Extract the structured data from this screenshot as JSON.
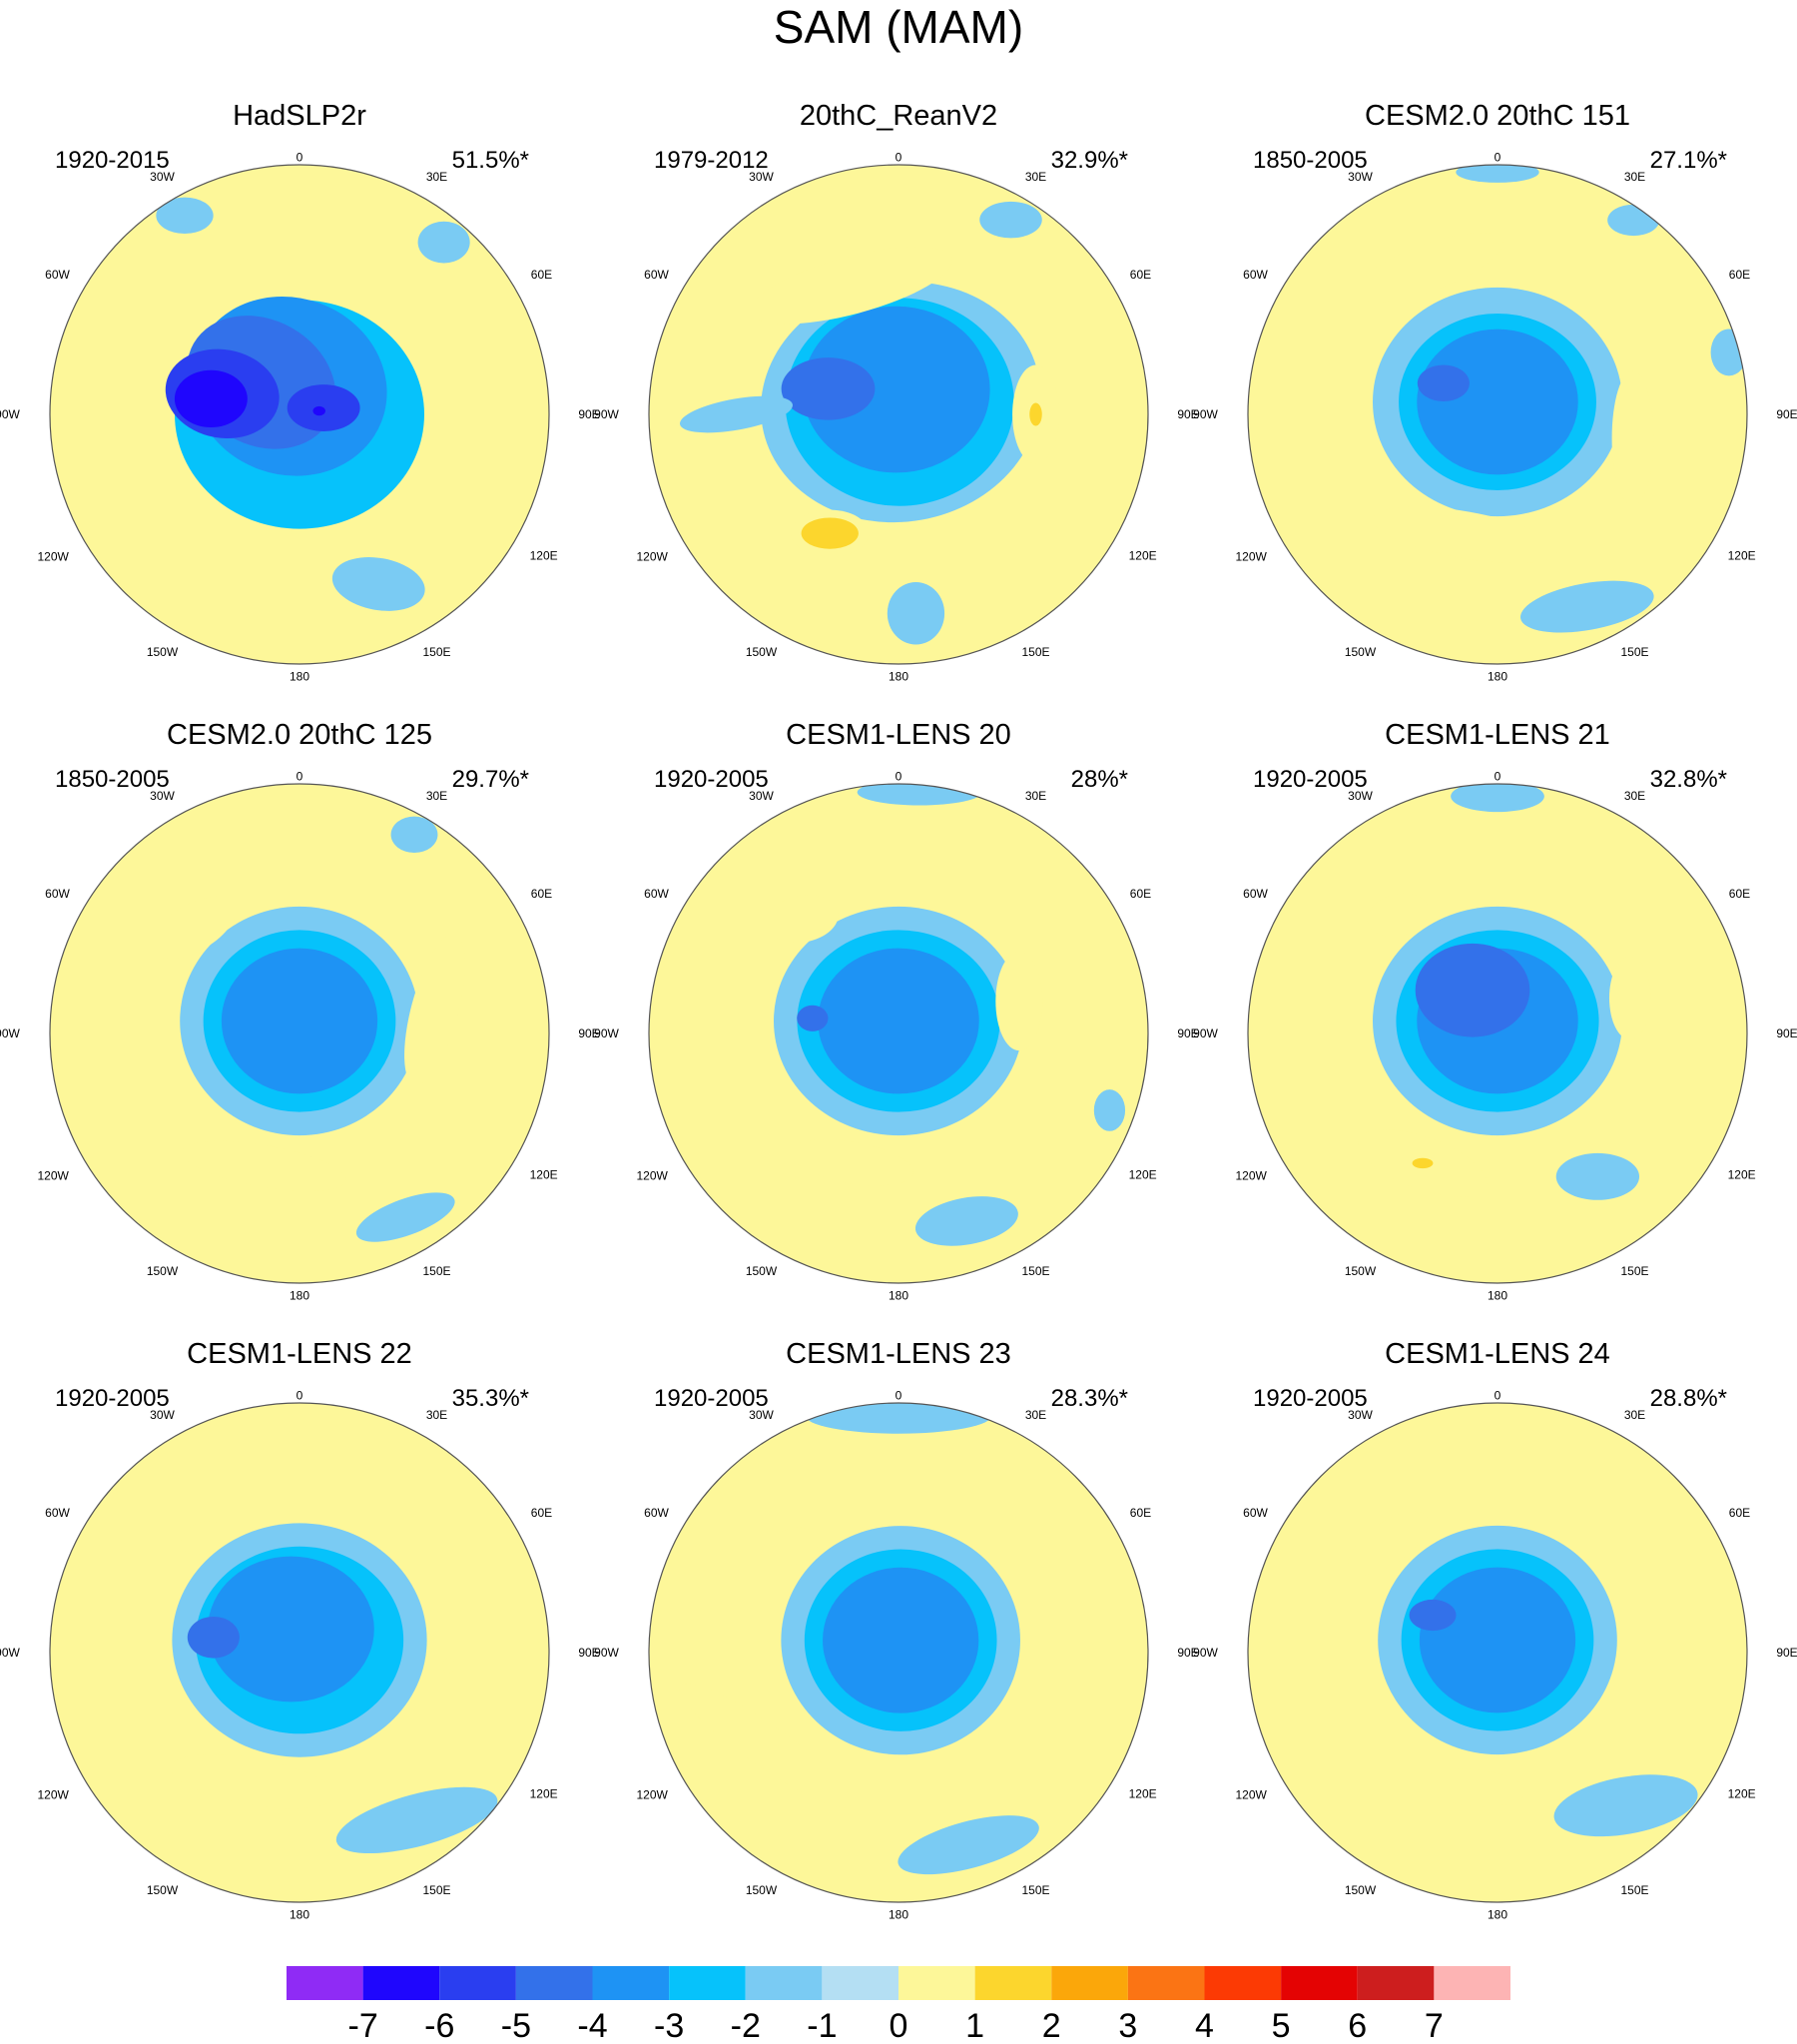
{
  "figure_title": "SAM (MAM)",
  "colors": {
    "coast": "#6e6e6e",
    "frame": "#555555",
    "levels": [
      "#8f2bf5",
      "#1f06fd",
      "#2a3ef0",
      "#3371ea",
      "#1e93f4",
      "#06c2fb",
      "#7acbf3",
      "#b4dff3",
      "#fdf799",
      "#fcd62d",
      "#fba70a",
      "#fb7414",
      "#fc3a04",
      "#e40303",
      "#cd1e1e",
      "#fdb4b4"
    ]
  },
  "polar_labels": {
    "lon_top": "0",
    "lon_bottom": "180",
    "lon_30w": "30W",
    "lon_30e": "30E",
    "lon_60w": "60W",
    "lon_60e": "60E",
    "lon_90w": "90W",
    "lon_90e": "90E",
    "lon_120w": "120W",
    "lon_120e": "120E",
    "lon_150w": "150W",
    "lon_150e": "150E"
  },
  "chart_data": [
    {
      "type": "heatmap",
      "title": "HadSLP2r",
      "period": "1920-2015",
      "variance": "51.5%*",
      "features": [
        {
          "lon": 0,
          "r": 0,
          "a": 2.4,
          "b": 2.2,
          "rot": 0,
          "level": -2
        },
        {
          "lon": -20,
          "r": 0.12,
          "a": 1.9,
          "b": 1.7,
          "rot": 20,
          "level": -3
        },
        {
          "lon": -50,
          "r": 0.2,
          "a": 1.5,
          "b": 1.2,
          "rot": 30,
          "level": -4
        },
        {
          "lon": -75,
          "r": 0.32,
          "a": 1.1,
          "b": 0.85,
          "rot": 10,
          "level": -5
        },
        {
          "lon": -80,
          "r": 0.36,
          "a": 0.7,
          "b": 0.55,
          "rot": 0,
          "level": -6
        },
        {
          "lon": 75,
          "r": 0.1,
          "a": 0.7,
          "b": 0.45,
          "rot": 0,
          "level": -5
        },
        {
          "lon": 80,
          "r": 0.08,
          "a": 0.12,
          "b": 0.09,
          "rot": 0,
          "level": -6
        },
        {
          "lon": -20,
          "r": 0.65,
          "a": 0.14,
          "b": 0.07,
          "rot": 20,
          "level": 1
        },
        {
          "lon": 155,
          "r": 0.75,
          "a": 0.9,
          "b": 0.5,
          "rot": 10,
          "level": -1
        },
        {
          "lon": 40,
          "r": 0.9,
          "a": 0.5,
          "b": 0.4,
          "rot": 0,
          "level": -1
        },
        {
          "lon": -30,
          "r": 0.92,
          "a": 0.55,
          "b": 0.35,
          "rot": 0,
          "level": -1
        }
      ]
    },
    {
      "type": "heatmap",
      "title": "20thC_ReanV2",
      "period": "1979-2012",
      "variance": "32.9%*",
      "features": [
        {
          "lon": 10,
          "r": 0.05,
          "a": 2.7,
          "b": 2.3,
          "rot": -10,
          "level": -1
        },
        {
          "lon": 5,
          "r": 0.05,
          "a": 2.2,
          "b": 2.0,
          "rot": 0,
          "level": -2
        },
        {
          "lon": -5,
          "r": 0.1,
          "a": 1.8,
          "b": 1.6,
          "rot": 0,
          "level": -3
        },
        {
          "lon": -70,
          "r": 0.3,
          "a": 0.9,
          "b": 0.6,
          "rot": 0,
          "level": -4
        },
        {
          "lon": -20,
          "r": 0.55,
          "a": 2.0,
          "b": 0.55,
          "rot": -15,
          "level": 1
        },
        {
          "lon": 90,
          "r": 0.55,
          "a": 0.45,
          "b": 0.95,
          "rot": 0,
          "level": 1
        },
        {
          "lon": 90,
          "r": 0.55,
          "a": 0.12,
          "b": 0.22,
          "rot": 0,
          "level": 2
        },
        {
          "lon": -150,
          "r": 0.55,
          "a": 0.75,
          "b": 0.45,
          "rot": 0,
          "level": 1
        },
        {
          "lon": -150,
          "r": 0.55,
          "a": 0.55,
          "b": 0.3,
          "rot": 0,
          "level": 2
        },
        {
          "lon": 175,
          "r": 0.8,
          "a": 0.55,
          "b": 0.6,
          "rot": 0,
          "level": -1
        },
        {
          "lon": 30,
          "r": 0.9,
          "a": 0.6,
          "b": 0.35,
          "rot": 0,
          "level": -1
        },
        {
          "lon": -90,
          "r": 0.65,
          "a": 1.1,
          "b": 0.3,
          "rot": -10,
          "level": -1
        }
      ]
    },
    {
      "type": "heatmap",
      "title": "CESM2.0 20thC 151",
      "period": "1850-2005",
      "variance": "27.1%*",
      "features": [
        {
          "lon": 0,
          "r": 0.05,
          "a": 2.4,
          "b": 2.2,
          "rot": 0,
          "level": -1
        },
        {
          "lon": 0,
          "r": 0.05,
          "a": 1.9,
          "b": 1.7,
          "rot": 0,
          "level": -2
        },
        {
          "lon": 0,
          "r": 0.05,
          "a": 1.55,
          "b": 1.4,
          "rot": 0,
          "level": -3
        },
        {
          "lon": -60,
          "r": 0.25,
          "a": 0.5,
          "b": 0.35,
          "rot": 0,
          "level": -4
        },
        {
          "lon": -25,
          "r": 0.65,
          "a": 1.5,
          "b": 0.45,
          "rot": -20,
          "level": 1
        },
        {
          "lon": 100,
          "r": 0.55,
          "a": 0.4,
          "b": 1.3,
          "rot": 0,
          "level": 1
        },
        {
          "lon": -165,
          "r": 0.5,
          "a": 1.8,
          "b": 0.45,
          "rot": 10,
          "level": 1
        },
        {
          "lon": 155,
          "r": 0.85,
          "a": 1.3,
          "b": 0.45,
          "rot": -10,
          "level": -1
        },
        {
          "lon": 35,
          "r": 0.95,
          "a": 0.5,
          "b": 0.3,
          "rot": 0,
          "level": -1
        },
        {
          "lon": 0,
          "r": 0.97,
          "a": 0.8,
          "b": 0.2,
          "rot": 0,
          "level": -1
        },
        {
          "lon": 75,
          "r": 0.96,
          "a": 0.35,
          "b": 0.45,
          "rot": 0,
          "level": -1
        }
      ]
    },
    {
      "type": "heatmap",
      "title": "CESM2.0 20thC 125",
      "period": "1850-2005",
      "variance": "29.7%*",
      "features": [
        {
          "lon": 0,
          "r": 0.05,
          "a": 2.3,
          "b": 2.2,
          "rot": 0,
          "level": -1
        },
        {
          "lon": 0,
          "r": 0.05,
          "a": 1.85,
          "b": 1.75,
          "rot": 0,
          "level": -2
        },
        {
          "lon": 0,
          "r": 0.05,
          "a": 1.5,
          "b": 1.4,
          "rot": 0,
          "level": -3
        },
        {
          "lon": -45,
          "r": 0.6,
          "a": 0.9,
          "b": 0.45,
          "rot": -30,
          "level": 1
        },
        {
          "lon": 80,
          "r": 0.55,
          "a": 0.45,
          "b": 1.5,
          "rot": 15,
          "level": 1
        },
        {
          "lon": -165,
          "r": 0.55,
          "a": 1.6,
          "b": 0.4,
          "rot": 10,
          "level": 1
        },
        {
          "lon": 150,
          "r": 0.85,
          "a": 1.0,
          "b": 0.35,
          "rot": -20,
          "level": -1
        },
        {
          "lon": 30,
          "r": 0.92,
          "a": 0.45,
          "b": 0.35,
          "rot": 0,
          "level": -1
        }
      ]
    },
    {
      "type": "heatmap",
      "title": "CESM1-LENS 20",
      "period": "1920-2005",
      "variance": "28%*",
      "features": [
        {
          "lon": 0,
          "r": 0.05,
          "a": 2.4,
          "b": 2.2,
          "rot": 0,
          "level": -1
        },
        {
          "lon": 0,
          "r": 0.05,
          "a": 1.95,
          "b": 1.75,
          "rot": 0,
          "level": -2
        },
        {
          "lon": 0,
          "r": 0.05,
          "a": 1.55,
          "b": 1.4,
          "rot": 0,
          "level": -3
        },
        {
          "lon": -80,
          "r": 0.35,
          "a": 0.3,
          "b": 0.25,
          "rot": 0,
          "level": -4
        },
        {
          "lon": -40,
          "r": 0.6,
          "a": 0.7,
          "b": 0.45,
          "rot": -10,
          "level": 1
        },
        {
          "lon": 75,
          "r": 0.5,
          "a": 0.45,
          "b": 0.95,
          "rot": 0,
          "level": 1
        },
        {
          "lon": -160,
          "r": 0.55,
          "a": 1.2,
          "b": 0.4,
          "rot": 10,
          "level": 1
        },
        {
          "lon": 160,
          "r": 0.8,
          "a": 1.0,
          "b": 0.45,
          "rot": -10,
          "level": -1
        },
        {
          "lon": 5,
          "r": 0.97,
          "a": 1.2,
          "b": 0.25,
          "rot": 0,
          "level": -1
        },
        {
          "lon": 110,
          "r": 0.9,
          "a": 0.3,
          "b": 0.4,
          "rot": 0,
          "level": -1
        }
      ]
    },
    {
      "type": "heatmap",
      "title": "CESM1-LENS 21",
      "period": "1920-2005",
      "variance": "32.8%*",
      "features": [
        {
          "lon": 0,
          "r": 0.05,
          "a": 2.4,
          "b": 2.2,
          "rot": 0,
          "level": -1
        },
        {
          "lon": 0,
          "r": 0.05,
          "a": 1.95,
          "b": 1.75,
          "rot": 0,
          "level": -2
        },
        {
          "lon": 0,
          "r": 0.05,
          "a": 1.55,
          "b": 1.4,
          "rot": 0,
          "level": -3
        },
        {
          "lon": -30,
          "r": 0.2,
          "a": 1.1,
          "b": 0.9,
          "rot": 0,
          "level": -4
        },
        {
          "lon": -40,
          "r": 0.62,
          "a": 0.6,
          "b": 0.4,
          "rot": -15,
          "level": 1
        },
        {
          "lon": 75,
          "r": 0.55,
          "a": 0.4,
          "b": 0.8,
          "rot": 0,
          "level": 1
        },
        {
          "lon": -150,
          "r": 0.6,
          "a": 1.3,
          "b": 0.5,
          "rot": 20,
          "level": 1
        },
        {
          "lon": -150,
          "r": 0.6,
          "a": 0.2,
          "b": 0.1,
          "rot": 0,
          "level": 2
        },
        {
          "lon": 145,
          "r": 0.7,
          "a": 0.8,
          "b": 0.45,
          "rot": 0,
          "level": -1
        },
        {
          "lon": 0,
          "r": 0.95,
          "a": 0.9,
          "b": 0.3,
          "rot": 0,
          "level": -1
        }
      ]
    },
    {
      "type": "heatmap",
      "title": "CESM1-LENS 22",
      "period": "1920-2005",
      "variance": "35.3%*",
      "features": [
        {
          "lon": 0,
          "r": 0.05,
          "a": 2.45,
          "b": 2.25,
          "rot": 0,
          "level": -1
        },
        {
          "lon": 0,
          "r": 0.05,
          "a": 2.0,
          "b": 1.8,
          "rot": 0,
          "level": -2
        },
        {
          "lon": -20,
          "r": 0.1,
          "a": 1.6,
          "b": 1.4,
          "rot": 0,
          "level": -3
        },
        {
          "lon": -80,
          "r": 0.35,
          "a": 0.5,
          "b": 0.4,
          "rot": 0,
          "level": -4
        },
        {
          "lon": -40,
          "r": 0.6,
          "a": 0.45,
          "b": 0.3,
          "rot": -20,
          "level": 1
        },
        {
          "lon": -160,
          "r": 0.55,
          "a": 1.6,
          "b": 0.45,
          "rot": 10,
          "level": 1
        },
        {
          "lon": 145,
          "r": 0.82,
          "a": 1.6,
          "b": 0.5,
          "rot": -15,
          "level": -1
        },
        {
          "lon": 95,
          "r": 0.6,
          "a": 0.12,
          "b": 0.15,
          "rot": 0,
          "level": 1
        }
      ]
    },
    {
      "type": "heatmap",
      "title": "CESM1-LENS 23",
      "period": "1920-2005",
      "variance": "28.3%*",
      "features": [
        {
          "lon": 10,
          "r": 0.05,
          "a": 2.3,
          "b": 2.2,
          "rot": 0,
          "level": -1
        },
        {
          "lon": 10,
          "r": 0.05,
          "a": 1.85,
          "b": 1.75,
          "rot": 0,
          "level": -2
        },
        {
          "lon": 10,
          "r": 0.05,
          "a": 1.5,
          "b": 1.4,
          "rot": 0,
          "level": -3
        },
        {
          "lon": -45,
          "r": 0.6,
          "a": 0.5,
          "b": 0.35,
          "rot": -20,
          "level": 1
        },
        {
          "lon": -125,
          "r": 0.65,
          "a": 2.0,
          "b": 0.4,
          "rot": 35,
          "level": 1
        },
        {
          "lon": 160,
          "r": 0.82,
          "a": 1.4,
          "b": 0.45,
          "rot": -15,
          "level": -1
        },
        {
          "lon": 0,
          "r": 0.95,
          "a": 1.8,
          "b": 0.35,
          "rot": 0,
          "level": -1
        }
      ]
    },
    {
      "type": "heatmap",
      "title": "CESM1-LENS 24",
      "period": "1920-2005",
      "variance": "28.8%*",
      "features": [
        {
          "lon": 0,
          "r": 0.05,
          "a": 2.3,
          "b": 2.2,
          "rot": 0,
          "level": -1
        },
        {
          "lon": 0,
          "r": 0.05,
          "a": 1.85,
          "b": 1.75,
          "rot": 0,
          "level": -2
        },
        {
          "lon": 0,
          "r": 0.05,
          "a": 1.5,
          "b": 1.4,
          "rot": 0,
          "level": -3
        },
        {
          "lon": -60,
          "r": 0.3,
          "a": 0.45,
          "b": 0.3,
          "rot": 0,
          "level": -4
        },
        {
          "lon": -45,
          "r": 0.62,
          "a": 0.9,
          "b": 0.4,
          "rot": -35,
          "level": 1
        },
        {
          "lon": -170,
          "r": 0.55,
          "a": 1.0,
          "b": 0.35,
          "rot": 5,
          "level": 1
        },
        {
          "lon": 90,
          "r": 0.6,
          "a": 0.12,
          "b": 0.2,
          "rot": 0,
          "level": 1
        },
        {
          "lon": 140,
          "r": 0.8,
          "a": 1.4,
          "b": 0.55,
          "rot": -10,
          "level": -1
        }
      ]
    }
  ],
  "colorbar": {
    "tick_labels": [
      "-7",
      "-6",
      "-5",
      "-4",
      "-3",
      "-2",
      "-1",
      "0",
      "1",
      "2",
      "3",
      "4",
      "5",
      "6",
      "7"
    ],
    "n_boxes": 16
  }
}
